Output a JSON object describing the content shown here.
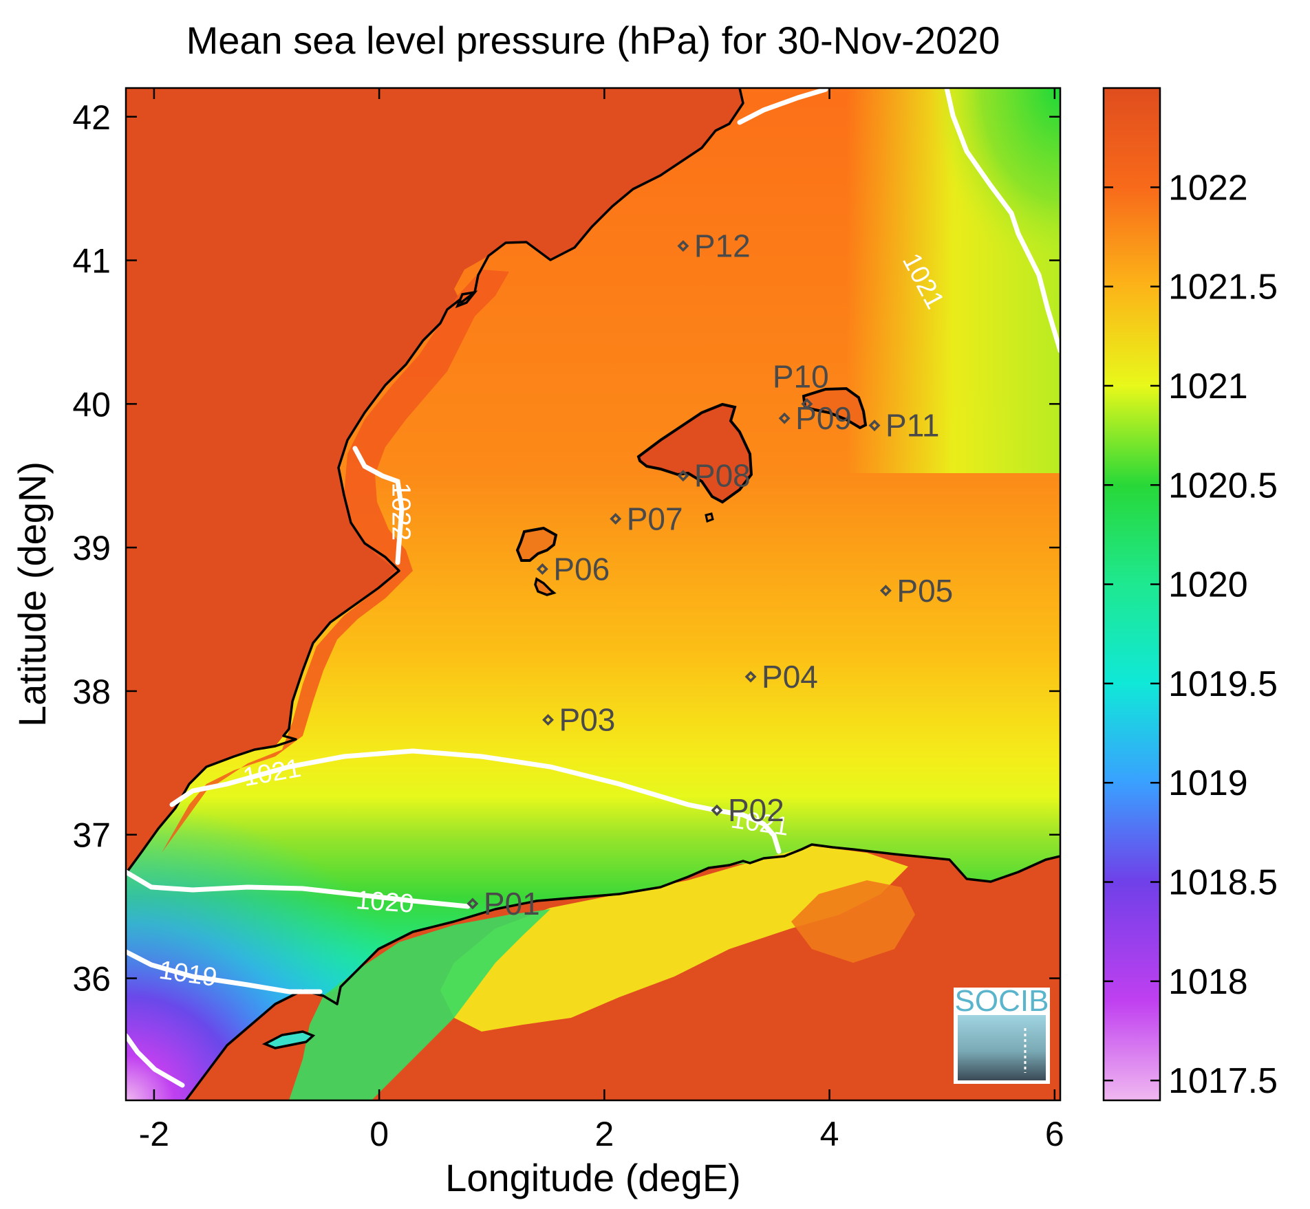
{
  "title": "Mean sea level pressure (hPa) for 30-Nov-2020",
  "map": {
    "xlabel": "Longitude (degE)",
    "ylabel": "Latitude (degN)",
    "xlim": [
      -2.25,
      6.05
    ],
    "ylim": [
      35.15,
      42.2
    ],
    "xticks": [
      -2,
      0,
      2,
      4,
      6
    ],
    "xtick_labels": [
      "-2",
      "0",
      "2",
      "4",
      "6"
    ],
    "yticks": [
      36,
      37,
      38,
      39,
      40,
      41,
      42
    ],
    "ytick_labels": [
      "36",
      "37",
      "38",
      "39",
      "40",
      "41",
      "42"
    ],
    "colors": {
      "land": "#e04d1e",
      "contour": "#ffffff",
      "coastline": "#000000",
      "station": "#4a4a4a"
    }
  },
  "colorbar": {
    "range": [
      1017.4,
      1022.5
    ],
    "ticks": [
      1017.5,
      1018,
      1018.5,
      1019,
      1019.5,
      1020,
      1020.5,
      1021,
      1021.5,
      1022
    ],
    "tick_labels": [
      "1017.5",
      "1018",
      "1018.5",
      "1019",
      "1019.5",
      "1020",
      "1020.5",
      "1021",
      "1021.5",
      "1022"
    ],
    "stops": [
      {
        "value": 1017.4,
        "color": "#f0b8f0"
      },
      {
        "value": 1017.9,
        "color": "#c040f0"
      },
      {
        "value": 1018.5,
        "color": "#7040e8"
      },
      {
        "value": 1019.0,
        "color": "#3aa0ff"
      },
      {
        "value": 1019.5,
        "color": "#10e8d8"
      },
      {
        "value": 1020.0,
        "color": "#1ee890"
      },
      {
        "value": 1020.5,
        "color": "#28d838"
      },
      {
        "value": 1021.0,
        "color": "#e8f81a"
      },
      {
        "value": 1021.5,
        "color": "#fcb418"
      },
      {
        "value": 1022.0,
        "color": "#f86a1a"
      },
      {
        "value": 1022.5,
        "color": "#e04d1e"
      }
    ]
  },
  "contours": [
    {
      "level": 1022,
      "label": "1022",
      "label_lon": 0.18,
      "label_lat": 39.25,
      "label_angle": 90
    },
    {
      "level": 1021,
      "label": "1021",
      "label_lon": 4.82,
      "label_lat": 40.85,
      "label_angle": 62
    },
    {
      "level": 1021,
      "label": "1021",
      "label_lon": -0.95,
      "label_lat": 37.42,
      "label_angle": -10
    },
    {
      "level": 1021,
      "label": "1021",
      "label_lon": 3.38,
      "label_lat": 37.07,
      "label_angle": 8
    },
    {
      "level": 1020,
      "label": "1020",
      "label_lon": 0.05,
      "label_lat": 36.52,
      "label_angle": 4
    },
    {
      "level": 1019,
      "label": "1019",
      "label_lon": -1.7,
      "label_lat": 36.02,
      "label_angle": 8
    }
  ],
  "stations": [
    {
      "id": "P01",
      "lon": 0.83,
      "lat": 36.52
    },
    {
      "id": "P02",
      "lon": 3.0,
      "lat": 37.17
    },
    {
      "id": "P03",
      "lon": 1.5,
      "lat": 37.8
    },
    {
      "id": "P04",
      "lon": 3.3,
      "lat": 38.1
    },
    {
      "id": "P05",
      "lon": 4.5,
      "lat": 38.7
    },
    {
      "id": "P06",
      "lon": 1.45,
      "lat": 38.85
    },
    {
      "id": "P07",
      "lon": 2.1,
      "lat": 39.2
    },
    {
      "id": "P08",
      "lon": 2.7,
      "lat": 39.5
    },
    {
      "id": "P09",
      "lon": 3.6,
      "lat": 39.9
    },
    {
      "id": "P10",
      "lon": 3.8,
      "lat": 40.0
    },
    {
      "id": "P11",
      "lon": 4.4,
      "lat": 39.85
    },
    {
      "id": "P12",
      "lon": 2.7,
      "lat": 41.1
    }
  ],
  "logo": {
    "text": "SOCIB"
  }
}
